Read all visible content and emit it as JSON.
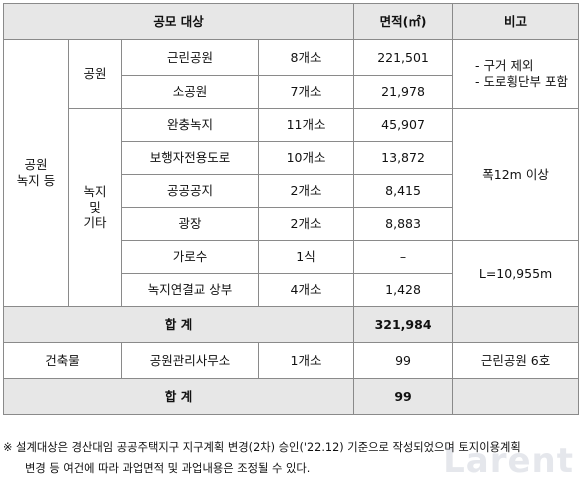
{
  "table": {
    "header": {
      "target": "공모 대상",
      "area": "면적(㎡)",
      "remarks": "비고"
    },
    "group_label": "공원\n녹지 등",
    "park": {
      "label": "공원",
      "rows": [
        {
          "name": "근린공원",
          "count": "8개소",
          "area": "221,501"
        },
        {
          "name": "소공원",
          "count": "7개소",
          "area": "21,978"
        }
      ],
      "note": [
        "- 구거 제외",
        "- 도로횡단부 포함"
      ]
    },
    "green": {
      "label": "녹지\n및\n기타",
      "rows": [
        {
          "name": "완충녹지",
          "count": "11개소",
          "area": "45,907"
        },
        {
          "name": "보행자전용도로",
          "count": "10개소",
          "area": "13,872"
        },
        {
          "name": "공공공지",
          "count": "2개소",
          "area": "8,415"
        },
        {
          "name": "광장",
          "count": "2개소",
          "area": "8,883"
        },
        {
          "name": "가로수",
          "count": "1식",
          "area": "–"
        },
        {
          "name": "녹지연결교 상부",
          "count": "4개소",
          "area": "1,428"
        }
      ],
      "note_green": "폭12m 이상",
      "note_tree": "L=10,955m"
    },
    "subtotal": {
      "label": "합 계",
      "area": "321,984"
    },
    "building": {
      "label": "건축물",
      "name": "공원관리사무소",
      "count": "1개소",
      "area": "99",
      "note": "근린공원 6호"
    },
    "total": {
      "label": "합 계",
      "area": "99"
    }
  },
  "footnote": {
    "line1": "※ 설계대상은 경산대임 공공주택지구 지구계획 변경(2차) 승인('22.12) 기준으로 작성되었으며 토지이용계획",
    "line2": "변경 등 여건에 따라 과업면적 및 과업내용은 조정될 수 있다."
  },
  "watermark": "Larent"
}
